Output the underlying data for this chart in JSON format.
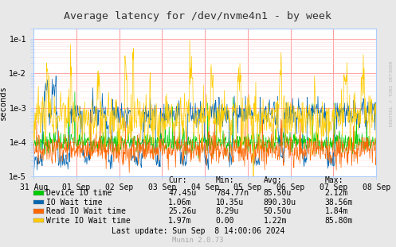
{
  "title": "Average latency for /dev/nvme4n1 - by week",
  "ylabel": "seconds",
  "watermark": "RRDTOOL / TOBI OETIKER",
  "munin_version": "Munin 2.0.73",
  "last_update": "Last update: Sun Sep  8 14:00:06 2024",
  "xticklabels": [
    "31 Aug",
    "01 Sep",
    "02 Sep",
    "03 Sep",
    "04 Sep",
    "05 Sep",
    "06 Sep",
    "07 Sep",
    "08 Sep"
  ],
  "background_color": "#e8e8e8",
  "plot_bg_color": "#ffffff",
  "grid_major_color": "#ff9999",
  "grid_minor_color": "#ffdddd",
  "border_color": "#aaccff",
  "legend": [
    {
      "label": "Device IO time",
      "color": "#00cc00",
      "cur": "47.45u",
      "min": "784.77n",
      "avg": "85.50u",
      "max": "2.12m"
    },
    {
      "label": "IO Wait time",
      "color": "#0066b3",
      "cur": "1.06m",
      "min": "10.35u",
      "avg": "890.30u",
      "max": "38.56m"
    },
    {
      "label": "Read IO Wait time",
      "color": "#ff6600",
      "cur": "25.26u",
      "min": "8.29u",
      "avg": "50.50u",
      "max": "1.84m"
    },
    {
      "label": "Write IO Wait time",
      "color": "#ffcc00",
      "cur": "1.97m",
      "min": "0.00",
      "avg": "1.22m",
      "max": "85.80m"
    }
  ],
  "series_colors": [
    "#00cc00",
    "#0066b3",
    "#ff6600",
    "#ffcc00"
  ],
  "n_points": 800,
  "seed": 7
}
